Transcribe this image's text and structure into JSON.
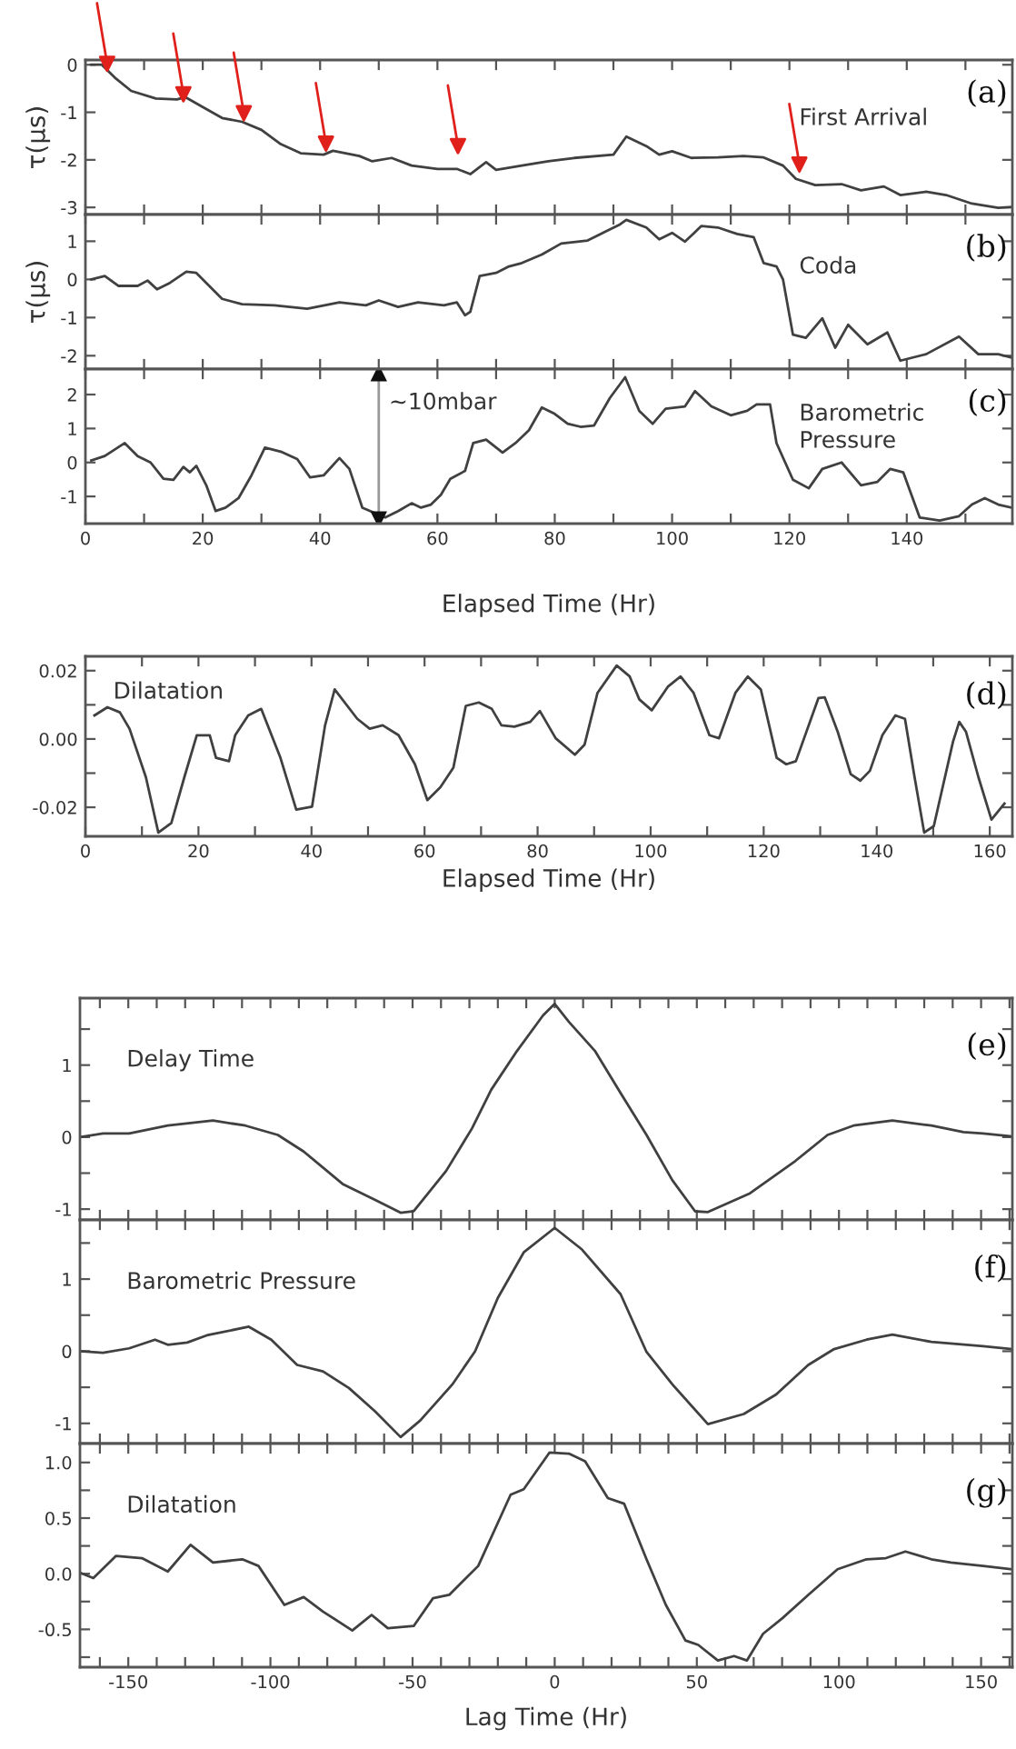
{
  "chart_data": [
    {
      "type": "line",
      "ylabel": "τ(μs)",
      "xlim": [
        0,
        158
      ],
      "ylim": [
        -3.15,
        0.1
      ],
      "yticks": [
        0,
        -1,
        -2,
        -3
      ],
      "tick_labels": "y",
      "xticks": [
        {
          "value": 0,
          "label": null
        },
        {
          "value": 10,
          "label": null
        },
        {
          "value": 20,
          "label": null
        },
        {
          "value": 30,
          "label": null
        },
        {
          "value": 40,
          "label": null
        },
        {
          "value": 50,
          "label": null
        },
        {
          "value": 60,
          "label": null
        },
        {
          "value": 70,
          "label": null
        },
        {
          "value": 80,
          "label": null
        },
        {
          "value": 90,
          "label": null
        },
        {
          "value": 100,
          "label": null
        },
        {
          "value": 110,
          "label": null
        },
        {
          "value": 120,
          "label": null
        },
        {
          "value": 130,
          "label": null
        },
        {
          "value": 140,
          "label": null
        },
        {
          "value": 150,
          "label": null
        }
      ],
      "annotations": [
        "(a)"
      ],
      "series": [
        {
          "type": "scatter",
          "marker": "triangle",
          "color": "#e0201b",
          "x": [
            3.7,
            16.7,
            27,
            41,
            63.5,
            121.7
          ],
          "values": [
            0.02,
            -0.62,
            -1.02,
            -1.66,
            -1.71,
            -2.1
          ]
        },
        {
          "name": "First Arrival",
          "color": "#404040",
          "x": [
            1,
            2.8,
            5,
            7.8,
            12,
            15.6,
            17,
            20,
            23.3,
            26.7,
            30,
            33.3,
            36.7,
            40.6,
            42.2,
            46.7,
            48.9,
            52.2,
            55.6,
            60,
            63.3,
            65.6,
            68.3,
            70,
            74.4,
            78.9,
            83.3,
            90,
            92.2,
            95.6,
            97.8,
            100,
            103.3,
            107.8,
            112.2,
            115.6,
            118.9,
            121.1,
            124.4,
            128.9,
            132.2,
            136.1,
            138.9,
            143.3,
            146.7,
            151.1,
            155.6,
            157.9
          ],
          "values": [
            0,
            0,
            -0.27,
            -0.55,
            -0.71,
            -0.73,
            -0.68,
            -0.89,
            -1.12,
            -1.2,
            -1.37,
            -1.67,
            -1.86,
            -1.89,
            -1.81,
            -1.92,
            -2.03,
            -1.96,
            -2.12,
            -2.19,
            -2.19,
            -2.3,
            -2.05,
            -2.21,
            -2.12,
            -2.03,
            -1.96,
            -1.89,
            -1.51,
            -1.71,
            -1.89,
            -1.82,
            -1.96,
            -1.95,
            -1.92,
            -1.95,
            -2.12,
            -2.4,
            -2.53,
            -2.51,
            -2.64,
            -2.56,
            -2.74,
            -2.67,
            -2.74,
            -2.92,
            -3.01,
            -2.99
          ]
        }
      ]
    },
    {
      "type": "line",
      "ylabel": "τ(μs)",
      "xlim": [
        0,
        158
      ],
      "ylim": [
        -2.35,
        1.7
      ],
      "yticks": [
        1,
        0,
        -1,
        -2
      ],
      "tick_labels": "y",
      "xticks": [
        {
          "value": 0,
          "label": null
        },
        {
          "value": 10,
          "label": null
        },
        {
          "value": 20,
          "label": null
        },
        {
          "value": 30,
          "label": null
        },
        {
          "value": 40,
          "label": null
        },
        {
          "value": 50,
          "label": null
        },
        {
          "value": 60,
          "label": null
        },
        {
          "value": 70,
          "label": null
        },
        {
          "value": 80,
          "label": null
        },
        {
          "value": 90,
          "label": null
        },
        {
          "value": 100,
          "label": null
        },
        {
          "value": 110,
          "label": null
        },
        {
          "value": 120,
          "label": null
        },
        {
          "value": 130,
          "label": null
        },
        {
          "value": 140,
          "label": null
        },
        {
          "value": 150,
          "label": null
        }
      ],
      "annotations": [
        "(b)"
      ],
      "series": [
        {
          "name": "Coda",
          "color": "#404040",
          "x": [
            1,
            3.3,
            5.6,
            8.9,
            10.6,
            12.2,
            14.4,
            17.2,
            18.9,
            21.1,
            23.3,
            26.7,
            32.2,
            37.8,
            43.3,
            47.8,
            50,
            53.3,
            56.7,
            61.1,
            63.3,
            64.7,
            65.6,
            67.2,
            70,
            72.2,
            74.4,
            77.8,
            81.1,
            85.6,
            87.8,
            91.1,
            92.2,
            95.6,
            97.8,
            100,
            102.2,
            105,
            107.8,
            111.1,
            113.9,
            115.6,
            117.8,
            118.9,
            120.6,
            122.8,
            125.6,
            127.8,
            130,
            133.3,
            136.7,
            138.9,
            143.3,
            148.9,
            152.2,
            155.6,
            157.9
          ],
          "values": [
            0,
            0.09,
            -0.17,
            -0.17,
            -0.03,
            -0.26,
            -0.09,
            0.2,
            0.17,
            -0.17,
            -0.51,
            -0.65,
            -0.68,
            -0.77,
            -0.6,
            -0.68,
            -0.55,
            -0.72,
            -0.6,
            -0.68,
            -0.6,
            -0.94,
            -0.85,
            0.09,
            0.17,
            0.34,
            0.43,
            0.65,
            0.94,
            1.02,
            1.19,
            1.44,
            1.56,
            1.36,
            1.05,
            1.22,
            0.99,
            1.4,
            1.36,
            1.19,
            1.11,
            0.43,
            0.34,
            0,
            -1.45,
            -1.53,
            -1.02,
            -1.79,
            -1.19,
            -1.7,
            -1.39,
            -2.13,
            -1.96,
            -1.5,
            -1.96,
            -1.96,
            -2.05
          ]
        }
      ]
    },
    {
      "type": "line",
      "xlabel": "Elapsed Time (Hr)",
      "xlim": [
        0,
        158
      ],
      "ylim": [
        -1.8,
        2.75
      ],
      "yticks": [
        2,
        1,
        0,
        -1
      ],
      "xticks": [
        0,
        {
          "value": 10,
          "label": null
        },
        20,
        {
          "value": 30,
          "label": null
        },
        40,
        {
          "value": 50,
          "label": null
        },
        60,
        {
          "value": 70,
          "label": null
        },
        80,
        {
          "value": 90,
          "label": null
        },
        100,
        {
          "value": 110,
          "label": null
        },
        120,
        {
          "value": 130,
          "label": null
        },
        140,
        {
          "value": 150,
          "label": null
        }
      ],
      "annotations": [
        "(c)"
      ],
      "ref_lines": [
        {
          "axis": "x",
          "value": 50,
          "label": "~10mbar",
          "color": "#999999"
        }
      ],
      "series": [
        {
          "name": "Barometric\nPressure",
          "color": "#404040",
          "x": [
            1,
            3.3,
            6.7,
            8.9,
            11.1,
            13.3,
            15,
            16.7,
            17.8,
            18.9,
            20.6,
            22.2,
            23.9,
            26.1,
            28.3,
            30.6,
            33.3,
            36.1,
            38.3,
            40.6,
            43.3,
            45,
            47.2,
            51.1,
            53.3,
            55.6,
            57.2,
            58.9,
            60.6,
            62.2,
            64.7,
            66.1,
            68.3,
            71.1,
            73.3,
            75.6,
            77.8,
            80,
            82.2,
            84.4,
            86.7,
            89.4,
            92,
            94.4,
            96.7,
            98.9,
            102.2,
            103.9,
            106.7,
            110,
            112.8,
            114.4,
            116.7,
            117.8,
            120.6,
            123.3,
            125.6,
            128.9,
            132.2,
            135,
            137.2,
            139.4,
            142.2,
            145.6,
            148.9,
            151.1,
            153.3,
            155.6,
            157.9
          ],
          "values": [
            0.06,
            0.19,
            0.57,
            0.19,
            0,
            -0.48,
            -0.51,
            -0.13,
            -0.29,
            -0.1,
            -0.67,
            -1.43,
            -1.33,
            -1.05,
            -0.38,
            0.44,
            0.32,
            0.1,
            -0.44,
            -0.38,
            0.13,
            -0.19,
            -1.33,
            -1.62,
            -1.43,
            -1.2,
            -1.33,
            -1.24,
            -0.95,
            -0.48,
            -0.25,
            0.57,
            0.67,
            0.29,
            0.57,
            0.95,
            1.62,
            1.43,
            1.14,
            1.05,
            1.09,
            1.9,
            2.51,
            1.52,
            1.14,
            1.58,
            1.65,
            2.1,
            1.65,
            1.39,
            1.52,
            1.71,
            1.71,
            0.57,
            -0.51,
            -0.76,
            -0.19,
            0,
            -0.67,
            -0.57,
            -0.19,
            -0.29,
            -1.62,
            -1.71,
            -1.58,
            -1.24,
            -1.05,
            -1.24,
            -1.33
          ]
        }
      ]
    },
    {
      "type": "line",
      "xlabel": "Elapsed Time (Hr)",
      "xlim": [
        0,
        164
      ],
      "ylim": [
        -0.0285,
        0.0242
      ],
      "yticks": [
        {
          "value": 0.02,
          "label": "0.02"
        },
        {
          "value": 0.01,
          "label": null
        },
        {
          "value": 0,
          "label": "0.00"
        },
        {
          "value": -0.01,
          "label": null
        },
        {
          "value": -0.02,
          "label": "-0.02"
        }
      ],
      "xticks": [
        0,
        {
          "value": 10,
          "label": null
        },
        20,
        {
          "value": 30,
          "label": null
        },
        40,
        {
          "value": 50,
          "label": null
        },
        60,
        {
          "value": 70,
          "label": null
        },
        80,
        {
          "value": 90,
          "label": null
        },
        100,
        {
          "value": 110,
          "label": null
        },
        120,
        {
          "value": 130,
          "label": null
        },
        140,
        {
          "value": 150,
          "label": null
        },
        160
      ],
      "annotations": [
        "(d)"
      ],
      "series": [
        {
          "name": "Dilatation",
          "color": "#404040",
          "x": [
            1.6,
            3.9,
            6.1,
            7.8,
            10.7,
            12.9,
            15.2,
            17.5,
            19.7,
            22,
            23.1,
            25.4,
            26.5,
            28.8,
            31.1,
            34.5,
            37.3,
            40.1,
            42.4,
            44.1,
            48.1,
            50.3,
            52.6,
            55.4,
            58.3,
            60.5,
            62.8,
            65.1,
            67.3,
            69.6,
            71.9,
            73.6,
            75.9,
            78.7,
            80.4,
            83.2,
            86.6,
            88.3,
            90.6,
            94,
            96.3,
            98,
            100.2,
            103.1,
            105.3,
            107.6,
            110.4,
            112.1,
            115,
            117.2,
            119.5,
            122.3,
            124,
            125.7,
            129.7,
            130.8,
            133.1,
            135.4,
            137.1,
            138.8,
            141,
            143.3,
            145,
            146.7,
            148.4,
            150.1,
            153.5,
            154.6,
            155.8,
            158,
            160.3,
            162.6
          ],
          "values": [
            0.0069,
            0.0093,
            0.0078,
            0.003,
            -0.0112,
            -0.0274,
            -0.0246,
            -0.0112,
            0.0011,
            0.0011,
            -0.0055,
            -0.0065,
            0.0011,
            0.0069,
            0.0088,
            -0.0055,
            -0.0207,
            -0.0198,
            0.004,
            0.0145,
            0.0059,
            0.003,
            0.004,
            0.0011,
            -0.0074,
            -0.0179,
            -0.0141,
            -0.0084,
            0.0097,
            0.0107,
            0.0088,
            0.004,
            0.0036,
            0.005,
            0.0082,
            0.0002,
            -0.0046,
            -0.0017,
            0.0135,
            0.0215,
            0.0183,
            0.0116,
            0.0084,
            0.0154,
            0.0183,
            0.0135,
            0.0011,
            0.0002,
            0.0135,
            0.0183,
            0.0145,
            -0.0055,
            -0.0074,
            -0.0065,
            0.012,
            0.0122,
            0.0021,
            -0.0103,
            -0.0122,
            -0.0093,
            0.0011,
            0.0069,
            0.0059,
            -0.0112,
            -0.0274,
            -0.0255,
            -0.0008,
            0.005,
            0.0021,
            -0.0112,
            -0.0236,
            -0.0189
          ]
        }
      ]
    },
    {
      "type": "line",
      "xlim": [
        -167,
        161
      ],
      "ylim": [
        -1.15,
        1.93
      ],
      "tick_labels": "y",
      "yticks": [
        {
          "value": 1.5,
          "label": null
        },
        1,
        {
          "value": 0.5,
          "label": null
        },
        0,
        {
          "value": -0.5,
          "label": null
        },
        -1
      ],
      "xticks": [
        {
          "value": -160,
          "label": null
        },
        {
          "value": -150,
          "label": null
        },
        {
          "value": -140,
          "label": null
        },
        {
          "value": -130,
          "label": null
        },
        {
          "value": -120,
          "label": null
        },
        {
          "value": -110,
          "label": null
        },
        {
          "value": -100,
          "label": null
        },
        {
          "value": -90,
          "label": null
        },
        {
          "value": -80,
          "label": null
        },
        {
          "value": -70,
          "label": null
        },
        {
          "value": -60,
          "label": null
        },
        {
          "value": -50,
          "label": null
        },
        {
          "value": -40,
          "label": null
        },
        {
          "value": -30,
          "label": null
        },
        {
          "value": -20,
          "label": null
        },
        {
          "value": -10,
          "label": null
        },
        {
          "value": 0,
          "label": null
        },
        {
          "value": 10,
          "label": null
        },
        {
          "value": 20,
          "label": null
        },
        {
          "value": 30,
          "label": null
        },
        {
          "value": 40,
          "label": null
        },
        {
          "value": 50,
          "label": null
        },
        {
          "value": 60,
          "label": null
        },
        {
          "value": 70,
          "label": null
        },
        {
          "value": 80,
          "label": null
        },
        {
          "value": 90,
          "label": null
        },
        {
          "value": 100,
          "label": null
        },
        {
          "value": 110,
          "label": null
        },
        {
          "value": 120,
          "label": null
        },
        {
          "value": 130,
          "label": null
        },
        {
          "value": 140,
          "label": null
        },
        {
          "value": 150,
          "label": null
        },
        {
          "value": 160,
          "label": null
        }
      ],
      "annotations": [
        "(e)"
      ],
      "series": [
        {
          "name": "Delay Time",
          "color": "#404040",
          "x": [
            -167,
            -158.9,
            -149.7,
            -136.1,
            -120.2,
            -108.8,
            -97.4,
            -88.3,
            -74.6,
            -63.3,
            -54.2,
            -49.6,
            -38.2,
            -29.1,
            -22.3,
            -13.2,
            -4.1,
            0,
            5,
            14.1,
            23.2,
            32.3,
            41.4,
            49.4,
            53.9,
            68.7,
            84.7,
            96,
            105.1,
            118.8,
            132.5,
            143.8,
            150.7,
            160.9
          ],
          "values": [
            0,
            0.05,
            0.05,
            0.16,
            0.23,
            0.16,
            0.03,
            -0.2,
            -0.65,
            -0.87,
            -1.05,
            -1.03,
            -0.47,
            0.12,
            0.66,
            1.2,
            1.69,
            1.85,
            1.6,
            1.2,
            0.61,
            0.03,
            -0.6,
            -1.03,
            -1.04,
            -0.78,
            -0.33,
            0.03,
            0.16,
            0.23,
            0.16,
            0.07,
            0.05,
            0.01
          ]
        }
      ]
    },
    {
      "type": "line",
      "xlim": [
        -167,
        161
      ],
      "ylim": [
        -1.28,
        1.82
      ],
      "tick_labels": "y",
      "yticks": [
        {
          "value": 1.5,
          "label": null
        },
        1,
        {
          "value": 0.5,
          "label": null
        },
        0,
        {
          "value": -0.5,
          "label": null
        },
        -1
      ],
      "xticks": [
        {
          "value": -160,
          "label": null
        },
        {
          "value": -150,
          "label": null
        },
        {
          "value": -140,
          "label": null
        },
        {
          "value": -130,
          "label": null
        },
        {
          "value": -120,
          "label": null
        },
        {
          "value": -110,
          "label": null
        },
        {
          "value": -100,
          "label": null
        },
        {
          "value": -90,
          "label": null
        },
        {
          "value": -80,
          "label": null
        },
        {
          "value": -70,
          "label": null
        },
        {
          "value": -60,
          "label": null
        },
        {
          "value": -50,
          "label": null
        },
        {
          "value": -40,
          "label": null
        },
        {
          "value": -30,
          "label": null
        },
        {
          "value": -20,
          "label": null
        },
        {
          "value": -10,
          "label": null
        },
        {
          "value": 0,
          "label": null
        },
        {
          "value": 10,
          "label": null
        },
        {
          "value": 20,
          "label": null
        },
        {
          "value": 30,
          "label": null
        },
        {
          "value": 40,
          "label": null
        },
        {
          "value": 50,
          "label": null
        },
        {
          "value": 60,
          "label": null
        },
        {
          "value": 70,
          "label": null
        },
        {
          "value": 80,
          "label": null
        },
        {
          "value": 90,
          "label": null
        },
        {
          "value": 100,
          "label": null
        },
        {
          "value": 110,
          "label": null
        },
        {
          "value": 120,
          "label": null
        },
        {
          "value": 130,
          "label": null
        },
        {
          "value": 140,
          "label": null
        },
        {
          "value": 150,
          "label": null
        },
        {
          "value": 160,
          "label": null
        }
      ],
      "annotations": [
        "(f)"
      ],
      "series": [
        {
          "name": "Barometric Pressure",
          "color": "#404040",
          "x": [
            -167,
            -158.9,
            -149.7,
            -140.6,
            -136.1,
            -129.3,
            -122.4,
            -107.6,
            -99.7,
            -90.6,
            -81.5,
            -72.4,
            -63.3,
            -54.2,
            -47.3,
            -36,
            -28,
            -20,
            -10.9,
            0,
            9.6,
            23.2,
            32.3,
            41.4,
            53.9,
            66.5,
            77.9,
            89.2,
            98.3,
            109.7,
            118.8,
            132.5,
            150.7,
            160.9
          ],
          "values": [
            0,
            -0.02,
            0.04,
            0.16,
            0.09,
            0.12,
            0.22,
            0.34,
            0.16,
            -0.19,
            -0.28,
            -0.51,
            -0.83,
            -1.19,
            -0.96,
            -0.46,
            0,
            0.74,
            1.37,
            1.71,
            1.41,
            0.79,
            -0.01,
            -0.46,
            -1.01,
            -0.87,
            -0.6,
            -0.19,
            0.03,
            0.16,
            0.23,
            0.13,
            0.07,
            0.03
          ]
        }
      ]
    },
    {
      "type": "line",
      "xlabel": "Lag Time (Hr)",
      "xlim": [
        -167,
        161
      ],
      "ylim": [
        -0.84,
        1.17
      ],
      "yticks": [
        {
          "value": 1.0,
          "label": "1.0"
        },
        {
          "value": 0.75,
          "label": null
        },
        {
          "value": 0.5,
          "label": "0.5"
        },
        {
          "value": 0.25,
          "label": null
        },
        {
          "value": 0,
          "label": "0.0"
        },
        {
          "value": -0.25,
          "label": null
        },
        {
          "value": -0.5,
          "label": "-0.5"
        },
        {
          "value": -0.75,
          "label": null
        }
      ],
      "xticks": [
        {
          "value": -160,
          "label": null
        },
        -150,
        {
          "value": -140,
          "label": null
        },
        {
          "value": -130,
          "label": null
        },
        {
          "value": -120,
          "label": null
        },
        {
          "value": -110,
          "label": null
        },
        -100,
        {
          "value": -90,
          "label": null
        },
        {
          "value": -80,
          "label": null
        },
        {
          "value": -70,
          "label": null
        },
        {
          "value": -60,
          "label": null
        },
        -50,
        {
          "value": -40,
          "label": null
        },
        {
          "value": -30,
          "label": null
        },
        {
          "value": -20,
          "label": null
        },
        {
          "value": -10,
          "label": null
        },
        0,
        {
          "value": 10,
          "label": null
        },
        {
          "value": 20,
          "label": null
        },
        {
          "value": 30,
          "label": null
        },
        {
          "value": 40,
          "label": null
        },
        50,
        {
          "value": 60,
          "label": null
        },
        {
          "value": 70,
          "label": null
        },
        {
          "value": 80,
          "label": null
        },
        {
          "value": 90,
          "label": null
        },
        100,
        {
          "value": 110,
          "label": null
        },
        {
          "value": 120,
          "label": null
        },
        {
          "value": 130,
          "label": null
        },
        {
          "value": 140,
          "label": null
        },
        150,
        {
          "value": 160,
          "label": null
        }
      ],
      "annotations": [
        "(g)"
      ],
      "series": [
        {
          "name": "Dilatation",
          "color": "#404040",
          "x": [
            -167,
            -162.3,
            -154.3,
            -145.2,
            -136.1,
            -128.1,
            -120.2,
            -109.9,
            -104.2,
            -95.1,
            -88.3,
            -81.5,
            -71.2,
            -64.4,
            -58.7,
            -49.6,
            -42.8,
            -37.1,
            -26.9,
            -15.5,
            -10.9,
            -1.8,
            5,
            10.7,
            18.7,
            24.4,
            32.3,
            39.1,
            46,
            50.5,
            57.4,
            63.1,
            67.6,
            73.3,
            80.1,
            89.2,
            99.5,
            109.7,
            116.5,
            123.4,
            132.5,
            139.4,
            150.7,
            160.9
          ],
          "values": [
            0.01,
            -0.04,
            0.16,
            0.14,
            0.02,
            0.26,
            0.1,
            0.13,
            0.07,
            -0.28,
            -0.21,
            -0.34,
            -0.51,
            -0.37,
            -0.49,
            -0.47,
            -0.22,
            -0.19,
            0.07,
            0.71,
            0.76,
            1.09,
            1.08,
            1.01,
            0.68,
            0.63,
            0.13,
            -0.28,
            -0.6,
            -0.64,
            -0.78,
            -0.74,
            -0.78,
            -0.54,
            -0.4,
            -0.19,
            0.04,
            0.13,
            0.14,
            0.2,
            0.13,
            0.1,
            0.07,
            0.04
          ]
        }
      ]
    }
  ]
}
